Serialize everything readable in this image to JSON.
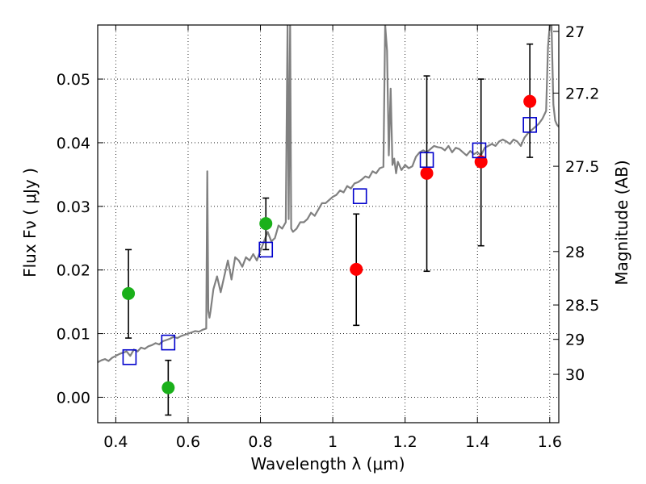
{
  "chart_data": {
    "type": "scatter",
    "xlabel": "Wavelength  λ (μm)",
    "ylabel": "Flux  Fν  ( μJy )",
    "ylabel_right": "Magnitude (AB)",
    "xlim": [
      0.35,
      1.625
    ],
    "ylim": [
      -0.004,
      0.0585
    ],
    "x_ticks": [
      0.4,
      0.6,
      0.8,
      1.0,
      1.2,
      1.4,
      1.6
    ],
    "x_tick_labels": [
      "0.4",
      "0.6",
      "0.8",
      "1",
      "1.2",
      "1.4",
      "1.6"
    ],
    "y_ticks": [
      0.0,
      0.01,
      0.02,
      0.03,
      0.04,
      0.05
    ],
    "y_tick_labels": [
      "0.00",
      "0.01",
      "0.02",
      "0.03",
      "0.04",
      "0.05"
    ],
    "mag_ticks": [
      {
        "label": "27",
        "flux": 0.0575
      },
      {
        "label": "27.2",
        "flux": 0.0478
      },
      {
        "label": "27.5",
        "flux": 0.0363
      },
      {
        "label": "28",
        "flux": 0.0229
      },
      {
        "label": "28.5",
        "flux": 0.0145
      },
      {
        "label": "29",
        "flux": 0.0091
      },
      {
        "label": "30",
        "flux": 0.0036
      }
    ],
    "grid": true,
    "colors": {
      "model_spectrum": "#808080",
      "observed_optical": "#1ab01a",
      "observed_nir": "#ff0000",
      "model_photometry": "#0000cc",
      "error_bar": "#000000"
    },
    "series": [
      {
        "type": "line",
        "x": [
          0.35,
          0.36,
          0.37,
          0.38,
          0.39,
          0.4,
          0.41,
          0.42,
          0.43,
          0.44,
          0.45,
          0.46,
          0.47,
          0.48,
          0.49,
          0.5,
          0.51,
          0.52,
          0.53,
          0.54,
          0.55,
          0.56,
          0.57,
          0.58,
          0.59,
          0.6,
          0.61,
          0.62,
          0.63,
          0.64,
          0.65,
          0.653,
          0.656,
          0.659,
          0.662,
          0.67,
          0.68,
          0.69,
          0.7,
          0.71,
          0.72,
          0.73,
          0.74,
          0.75,
          0.76,
          0.77,
          0.78,
          0.79,
          0.8,
          0.81,
          0.82,
          0.83,
          0.84,
          0.85,
          0.86,
          0.87,
          0.875,
          0.878,
          0.882,
          0.885,
          0.89,
          0.9,
          0.91,
          0.92,
          0.93,
          0.94,
          0.95,
          0.96,
          0.97,
          0.98,
          0.99,
          1.0,
          1.01,
          1.02,
          1.03,
          1.04,
          1.05,
          1.06,
          1.07,
          1.08,
          1.09,
          1.1,
          1.11,
          1.12,
          1.13,
          1.14,
          1.145,
          1.15,
          1.155,
          1.16,
          1.165,
          1.17,
          1.175,
          1.18,
          1.19,
          1.2,
          1.21,
          1.22,
          1.23,
          1.24,
          1.25,
          1.26,
          1.27,
          1.28,
          1.29,
          1.3,
          1.31,
          1.32,
          1.33,
          1.34,
          1.35,
          1.36,
          1.37,
          1.38,
          1.39,
          1.4,
          1.41,
          1.42,
          1.43,
          1.44,
          1.45,
          1.46,
          1.47,
          1.48,
          1.49,
          1.5,
          1.51,
          1.52,
          1.53,
          1.54,
          1.55,
          1.56,
          1.57,
          1.58,
          1.59,
          1.595,
          1.6,
          1.605,
          1.61,
          1.615,
          1.62,
          1.625
        ],
        "y": [
          0.0055,
          0.0058,
          0.006,
          0.0057,
          0.0062,
          0.0065,
          0.0068,
          0.007,
          0.0072,
          0.0065,
          0.0075,
          0.0072,
          0.0078,
          0.0076,
          0.008,
          0.0082,
          0.0085,
          0.0083,
          0.0088,
          0.009,
          0.0092,
          0.0095,
          0.0093,
          0.0096,
          0.0098,
          0.01,
          0.0102,
          0.0104,
          0.0103,
          0.0106,
          0.0108,
          0.0355,
          0.0135,
          0.0125,
          0.0135,
          0.017,
          0.019,
          0.0165,
          0.019,
          0.0215,
          0.0185,
          0.022,
          0.0215,
          0.0205,
          0.022,
          0.0215,
          0.0225,
          0.0215,
          0.023,
          0.0245,
          0.026,
          0.0245,
          0.025,
          0.027,
          0.0265,
          0.0275,
          0.0585,
          0.028,
          0.0585,
          0.0265,
          0.026,
          0.0265,
          0.0275,
          0.0275,
          0.028,
          0.029,
          0.0285,
          0.0295,
          0.0305,
          0.0305,
          0.031,
          0.0315,
          0.0318,
          0.0325,
          0.0322,
          0.0332,
          0.0328,
          0.0336,
          0.0338,
          0.0342,
          0.0347,
          0.0345,
          0.0355,
          0.0352,
          0.036,
          0.0362,
          0.0585,
          0.0545,
          0.038,
          0.0485,
          0.0365,
          0.0375,
          0.0352,
          0.037,
          0.0357,
          0.0365,
          0.036,
          0.0363,
          0.0378,
          0.0385,
          0.0388,
          0.0385,
          0.039,
          0.0395,
          0.0393,
          0.0392,
          0.0388,
          0.0395,
          0.0385,
          0.0392,
          0.039,
          0.0385,
          0.038,
          0.0387,
          0.0382,
          0.0385,
          0.038,
          0.0392,
          0.0395,
          0.0398,
          0.0395,
          0.0402,
          0.0405,
          0.0402,
          0.0398,
          0.0405,
          0.0402,
          0.0395,
          0.0408,
          0.0415,
          0.042,
          0.0425,
          0.043,
          0.0438,
          0.045,
          0.055,
          0.0585,
          0.0585,
          0.046,
          0.0435,
          0.0428,
          0.0425
        ]
      },
      {
        "type": "scatter",
        "marker": "circle",
        "x": [
          0.435,
          0.545,
          0.815
        ],
        "y": [
          0.0163,
          0.0015,
          0.0273
        ],
        "yerr_low": [
          0.0093,
          -0.0028,
          0.0232
        ],
        "yerr_high": [
          0.0232,
          0.0058,
          0.0313
        ]
      },
      {
        "type": "scatter",
        "marker": "circle",
        "x": [
          1.065,
          1.26,
          1.41,
          1.545
        ],
        "y": [
          0.0201,
          0.0352,
          0.037,
          0.0465
        ],
        "yerr_low": [
          0.0113,
          0.0198,
          0.0238,
          0.0377
        ],
        "yerr_high": [
          0.0288,
          0.0505,
          0.05,
          0.0555
        ]
      },
      {
        "type": "scatter",
        "marker": "open-square",
        "x": [
          0.438,
          0.545,
          0.815,
          1.075,
          1.26,
          1.405,
          1.545
        ],
        "y": [
          0.0063,
          0.0086,
          0.0232,
          0.0316,
          0.0373,
          0.0388,
          0.0428
        ]
      }
    ]
  }
}
